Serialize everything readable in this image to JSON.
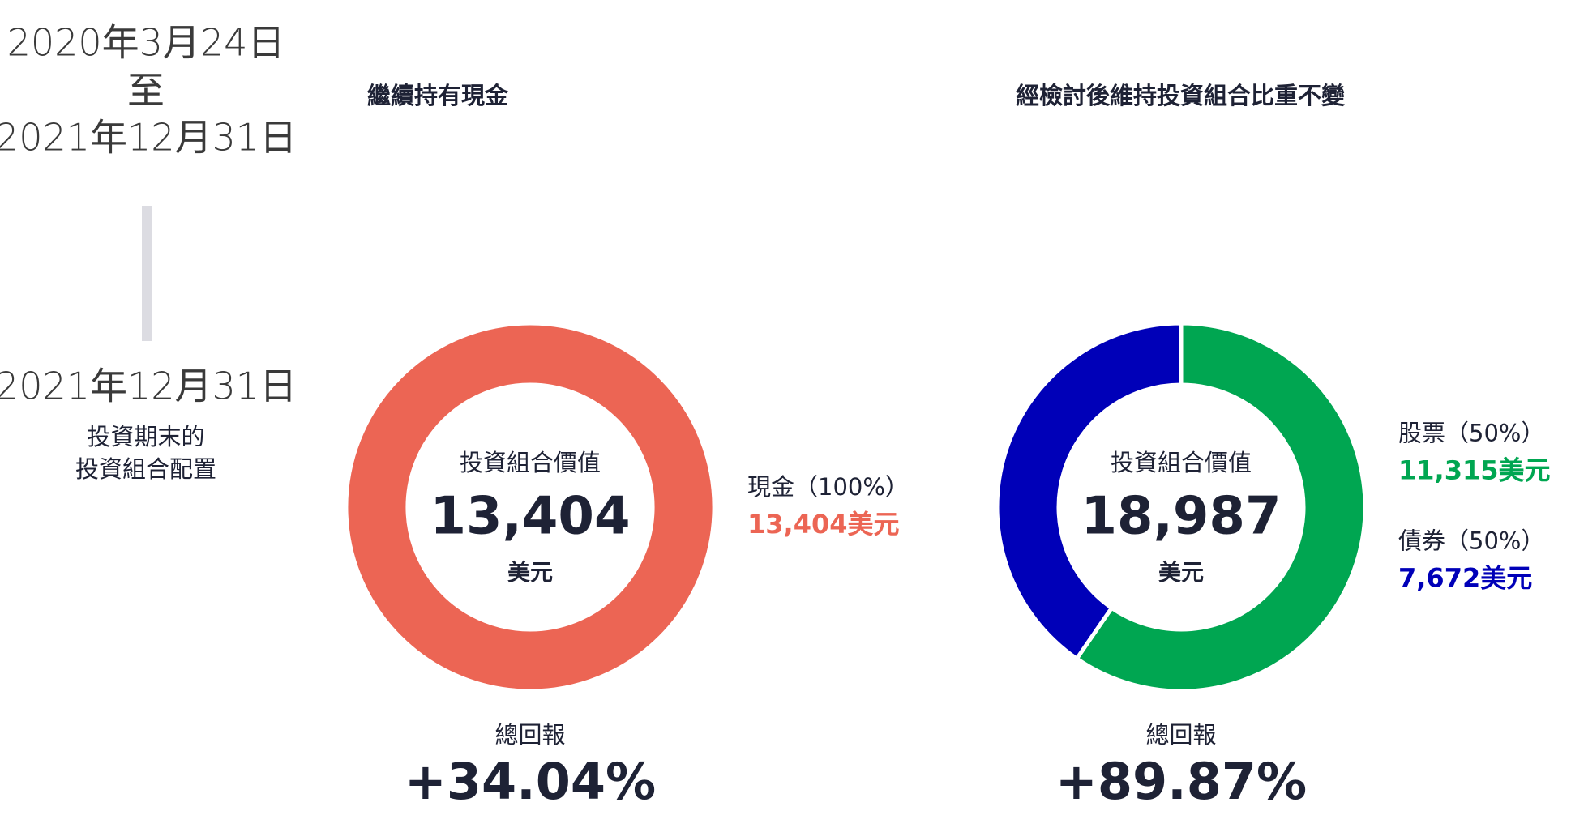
{
  "period": {
    "start": "2020年3月24日",
    "to": "至",
    "end": "2021年12月31日"
  },
  "snapshot": {
    "date": "2021年12月31日",
    "caption_lines": [
      "投資期末的",
      "投資組合配置"
    ]
  },
  "chart_data": [
    {
      "type": "pie",
      "title": "繼續持有現金",
      "center_label": "投資組合價值",
      "total": {
        "value": 13404,
        "label": "13,404"
      },
      "unit": "美元",
      "categories": [
        "現金（100%）"
      ],
      "values": [
        13404
      ],
      "value_labels": [
        "13,404美元"
      ],
      "colors": [
        "#ec6554"
      ],
      "return_label": "總回報",
      "return_value": {
        "value": 34.04,
        "label": "+34.04%"
      }
    },
    {
      "type": "pie",
      "title": "經檢討後維持投資組合比重不變",
      "center_label": "投資組合價值",
      "total": {
        "value": 18987,
        "label": "18,987"
      },
      "unit": "美元",
      "categories": [
        "股票（50%）",
        "債券（50%）"
      ],
      "values": [
        11315,
        7672
      ],
      "value_labels": [
        "11,315美元",
        "7,672美元"
      ],
      "colors": [
        "#00a651",
        "#0000b8"
      ],
      "return_label": "總回報",
      "return_value": {
        "value": 89.87,
        "label": "+89.87%"
      }
    }
  ]
}
